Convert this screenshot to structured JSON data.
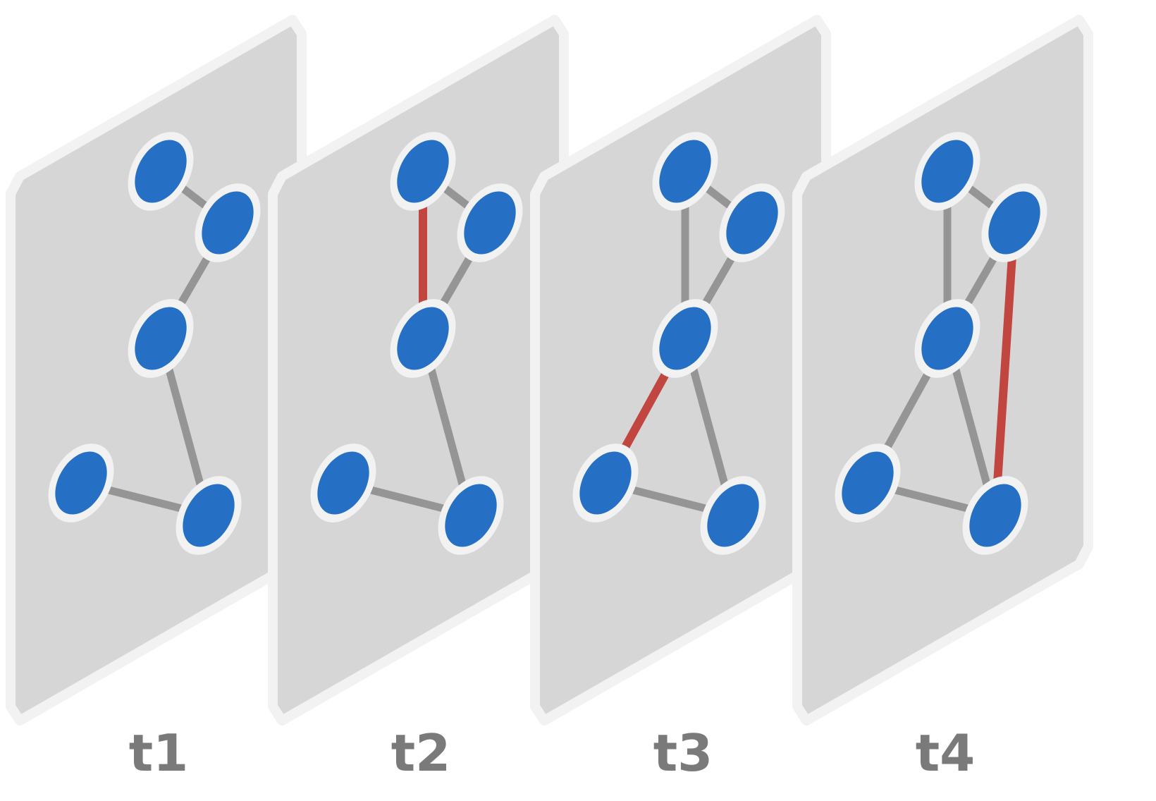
{
  "colors": {
    "background": "#ffffff",
    "panel_fill": "#d6d6d6",
    "panel_border": "#f2f2f2",
    "node_fill": "#2570c4",
    "node_ring": "#f2f2f2",
    "edge": "#959595",
    "new_edge": "#c0463f",
    "label_text": "#7a7a7a"
  },
  "diagram": {
    "nodes": [
      "A",
      "B",
      "C",
      "D",
      "E"
    ],
    "snapshots": [
      {
        "label": "t1",
        "edges": [
          [
            "A",
            "B"
          ],
          [
            "B",
            "C"
          ],
          [
            "C",
            "E"
          ],
          [
            "D",
            "E"
          ]
        ],
        "new_edges": []
      },
      {
        "label": "t2",
        "edges": [
          [
            "A",
            "B"
          ],
          [
            "B",
            "C"
          ],
          [
            "C",
            "E"
          ],
          [
            "D",
            "E"
          ],
          [
            "A",
            "C"
          ]
        ],
        "new_edges": [
          [
            "A",
            "C"
          ]
        ]
      },
      {
        "label": "t3",
        "edges": [
          [
            "A",
            "B"
          ],
          [
            "B",
            "C"
          ],
          [
            "C",
            "E"
          ],
          [
            "D",
            "E"
          ],
          [
            "A",
            "C"
          ],
          [
            "C",
            "D"
          ]
        ],
        "new_edges": [
          [
            "C",
            "D"
          ]
        ]
      },
      {
        "label": "t4",
        "edges": [
          [
            "A",
            "B"
          ],
          [
            "B",
            "C"
          ],
          [
            "C",
            "E"
          ],
          [
            "D",
            "E"
          ],
          [
            "A",
            "C"
          ],
          [
            "C",
            "D"
          ],
          [
            "B",
            "E"
          ]
        ],
        "new_edges": [
          [
            "B",
            "E"
          ]
        ]
      }
    ]
  }
}
